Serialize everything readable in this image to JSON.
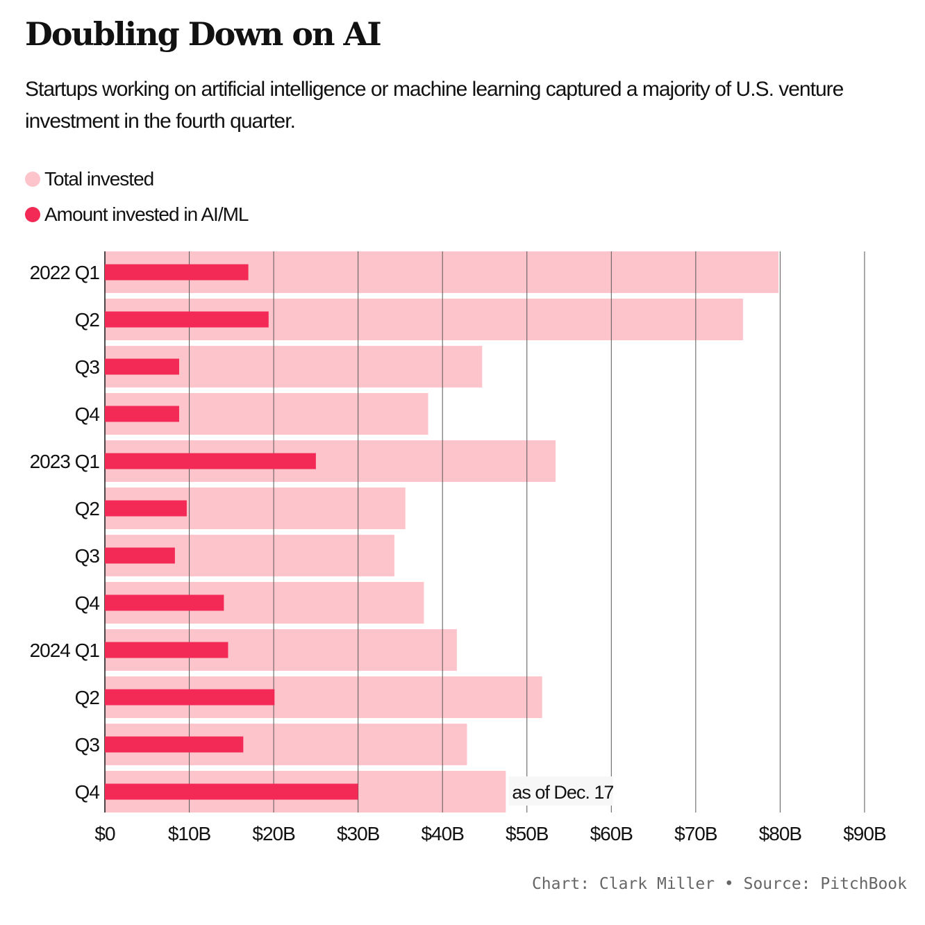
{
  "header": {
    "title": "Doubling Down on AI",
    "subtitle": "Startups working on artificial intelligence or machine learning captured a majority of U.S. venture investment in the fourth quarter."
  },
  "legend": {
    "total_label": "Total invested",
    "ai_label": "Amount invested in AI/ML"
  },
  "colors": {
    "total": "#fdc4cc",
    "ai": "#f22a55",
    "grid": "#555555",
    "annotation_bg": "#f7f7f7"
  },
  "chart_data": {
    "type": "bar",
    "orientation": "horizontal",
    "categories": [
      "2022 Q1",
      "Q2",
      "Q3",
      "Q4",
      "2023 Q1",
      "Q2",
      "Q3",
      "Q4",
      "2024 Q1",
      "Q2",
      "Q3",
      "Q4"
    ],
    "series": [
      {
        "name": "Total invested",
        "values": [
          79.8,
          75.6,
          44.7,
          38.3,
          53.4,
          35.6,
          34.3,
          37.8,
          41.7,
          51.8,
          42.9,
          47.5
        ]
      },
      {
        "name": "Amount invested in AI/ML",
        "values": [
          17.0,
          19.4,
          8.8,
          8.8,
          25.0,
          9.7,
          8.3,
          14.1,
          14.6,
          20.1,
          16.4,
          30.0
        ]
      }
    ],
    "xlim": [
      0,
      90
    ],
    "x_ticks": [
      0,
      10,
      20,
      30,
      40,
      50,
      60,
      70,
      80,
      90
    ],
    "x_tick_labels": [
      "$0",
      "$10B",
      "$20B",
      "$30B",
      "$40B",
      "$50B",
      "$60B",
      "$70B",
      "$80B",
      "$90B"
    ],
    "grid": true,
    "legend_position": "top-left",
    "annotation": {
      "text": "as of Dec. 17",
      "category_index": 11
    }
  },
  "footer": {
    "credit": "Chart: Clark Miller • Source: PitchBook"
  }
}
